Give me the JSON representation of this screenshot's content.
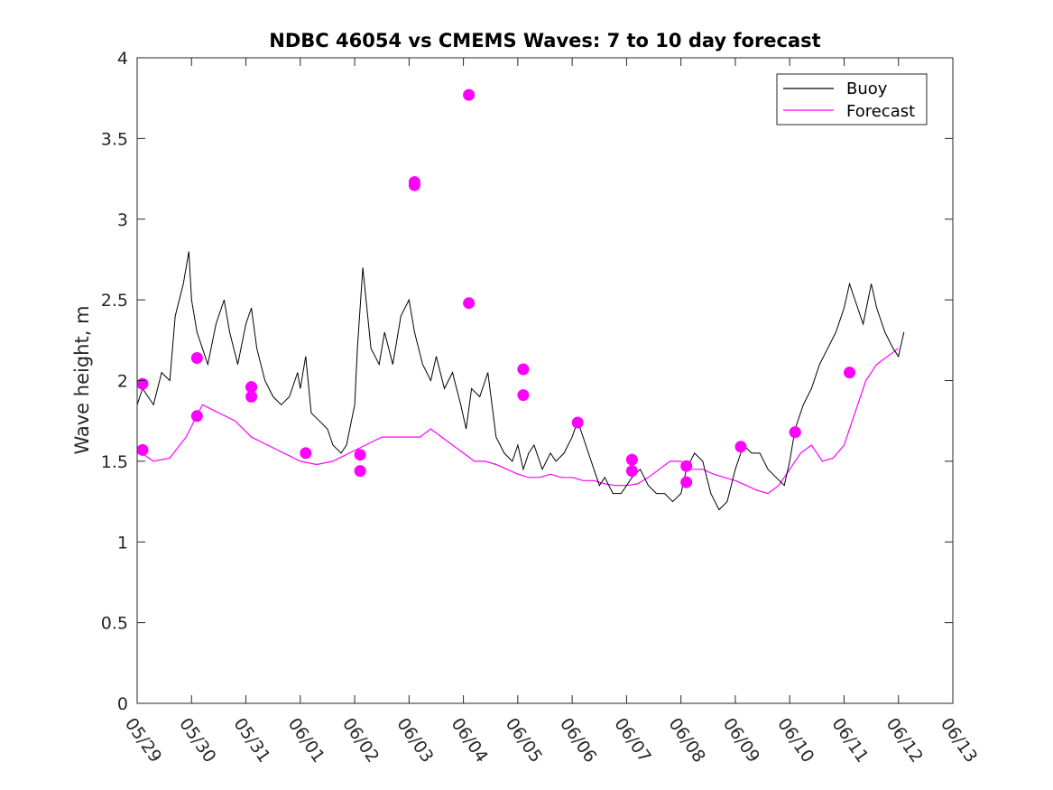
{
  "chart_data": {
    "type": "line",
    "title": "NDBC 46054 vs CMEMS Waves: 7 to 10 day forecast",
    "xlabel": "",
    "ylabel": "Wave height, m",
    "ylim": [
      0,
      4
    ],
    "yticks": [
      "0",
      "0.5",
      "1",
      "1.5",
      "2",
      "2.5",
      "3",
      "3.5",
      "4"
    ],
    "xticks": [
      "05/29",
      "05/30",
      "05/31",
      "06/01",
      "06/02",
      "06/03",
      "06/04",
      "06/05",
      "06/06",
      "06/07",
      "06/08",
      "06/09",
      "06/10",
      "06/11",
      "06/12",
      "06/13"
    ],
    "grid": false,
    "legend_position": "top-right",
    "colors": {
      "buoy": "#000000",
      "forecast": "#ff00ff"
    },
    "series": [
      {
        "name": "Buoy",
        "x": [
          0,
          0.1,
          0.2,
          0.3,
          0.45,
          0.6,
          0.7,
          0.85,
          0.95,
          1.0,
          1.1,
          1.2,
          1.3,
          1.45,
          1.6,
          1.7,
          1.85,
          2.0,
          2.1,
          2.2,
          2.35,
          2.5,
          2.65,
          2.8,
          2.95,
          3.0,
          3.1,
          3.2,
          3.35,
          3.5,
          3.6,
          3.75,
          3.85,
          4.0,
          4.05,
          4.15,
          4.3,
          4.45,
          4.55,
          4.7,
          4.85,
          5.0,
          5.1,
          5.25,
          5.4,
          5.5,
          5.65,
          5.8,
          5.95,
          6.05,
          6.15,
          6.3,
          6.45,
          6.6,
          6.75,
          6.9,
          7.0,
          7.1,
          7.2,
          7.3,
          7.45,
          7.6,
          7.7,
          7.85,
          8.0,
          8.1,
          8.25,
          8.4,
          8.5,
          8.6,
          8.75,
          8.9,
          9.0,
          9.1,
          9.25,
          9.4,
          9.55,
          9.7,
          9.85,
          10.0,
          10.1,
          10.25,
          10.4,
          10.55,
          10.7,
          10.85,
          11.0,
          11.15,
          11.3,
          11.45,
          11.6,
          11.75,
          11.9,
          12.0,
          12.1,
          12.25,
          12.4,
          12.55,
          12.7,
          12.85,
          13.0,
          13.1,
          13.2,
          13.35,
          13.5,
          13.6,
          13.75,
          13.9,
          14.0,
          14.1
        ],
        "y": [
          1.85,
          1.95,
          1.9,
          1.85,
          2.05,
          2.0,
          2.4,
          2.6,
          2.8,
          2.5,
          2.3,
          2.2,
          2.1,
          2.35,
          2.5,
          2.3,
          2.1,
          2.35,
          2.45,
          2.2,
          2.0,
          1.9,
          1.85,
          1.9,
          2.05,
          1.95,
          2.15,
          1.8,
          1.75,
          1.7,
          1.6,
          1.55,
          1.6,
          1.85,
          2.2,
          2.7,
          2.2,
          2.1,
          2.3,
          2.1,
          2.4,
          2.5,
          2.3,
          2.1,
          2.0,
          2.15,
          1.95,
          2.05,
          1.85,
          1.7,
          1.95,
          1.9,
          2.05,
          1.65,
          1.55,
          1.5,
          1.6,
          1.45,
          1.55,
          1.6,
          1.45,
          1.55,
          1.5,
          1.55,
          1.65,
          1.75,
          1.6,
          1.45,
          1.35,
          1.4,
          1.3,
          1.3,
          1.35,
          1.4,
          1.45,
          1.35,
          1.3,
          1.3,
          1.25,
          1.3,
          1.45,
          1.55,
          1.5,
          1.3,
          1.2,
          1.25,
          1.45,
          1.6,
          1.55,
          1.55,
          1.45,
          1.4,
          1.35,
          1.5,
          1.7,
          1.85,
          1.95,
          2.1,
          2.2,
          2.3,
          2.45,
          2.6,
          2.5,
          2.35,
          2.6,
          2.45,
          2.3,
          2.2,
          2.15,
          2.3
        ]
      },
      {
        "name": "Forecast",
        "x": [
          0.0,
          0.3,
          0.6,
          0.9,
          1.2,
          1.5,
          1.8,
          2.1,
          2.4,
          2.7,
          3.0,
          3.3,
          3.6,
          3.9,
          4.2,
          4.5,
          4.8,
          5.0,
          5.2,
          5.4,
          5.6,
          5.8,
          6.0,
          6.2,
          6.4,
          6.6,
          6.8,
          7.0,
          7.2,
          7.4,
          7.6,
          7.8,
          8.0,
          8.2,
          8.4,
          8.6,
          8.8,
          9.0,
          9.2,
          9.4,
          9.6,
          9.8,
          10.0,
          10.2,
          10.4,
          10.6,
          10.8,
          11.0,
          11.2,
          11.4,
          11.6,
          11.8,
          12.0,
          12.2,
          12.4,
          12.6,
          12.8,
          13.0,
          13.2,
          13.4,
          13.6,
          13.8,
          14.0
        ],
        "y": [
          1.57,
          1.5,
          1.52,
          1.65,
          1.85,
          1.8,
          1.75,
          1.65,
          1.6,
          1.55,
          1.5,
          1.48,
          1.5,
          1.55,
          1.6,
          1.65,
          1.65,
          1.65,
          1.65,
          1.7,
          1.65,
          1.6,
          1.55,
          1.5,
          1.5,
          1.48,
          1.45,
          1.42,
          1.4,
          1.4,
          1.42,
          1.4,
          1.4,
          1.38,
          1.38,
          1.36,
          1.35,
          1.35,
          1.36,
          1.4,
          1.45,
          1.5,
          1.5,
          1.45,
          1.45,
          1.42,
          1.4,
          1.38,
          1.35,
          1.32,
          1.3,
          1.35,
          1.45,
          1.55,
          1.6,
          1.5,
          1.52,
          1.6,
          1.8,
          2.0,
          2.1,
          2.15,
          2.2
        ]
      }
    ],
    "markers": {
      "x": [
        0.1,
        0.1,
        1.1,
        1.1,
        2.1,
        2.1,
        2.1,
        3.1,
        4.1,
        4.1,
        5.1,
        5.1,
        6.1,
        6.1,
        7.1,
        7.1,
        8.1,
        9.1,
        9.1,
        10.1,
        10.1,
        11.1,
        12.1,
        12.1,
        13.1
      ],
      "y": [
        1.98,
        1.57,
        2.14,
        1.78,
        1.96,
        1.9,
        1.96,
        1.55,
        1.54,
        1.44,
        3.21,
        3.23,
        3.77,
        2.48,
        2.07,
        1.91,
        1.74,
        1.51,
        1.44,
        1.47,
        1.37,
        1.59,
        1.68,
        1.68,
        2.05
      ]
    }
  }
}
